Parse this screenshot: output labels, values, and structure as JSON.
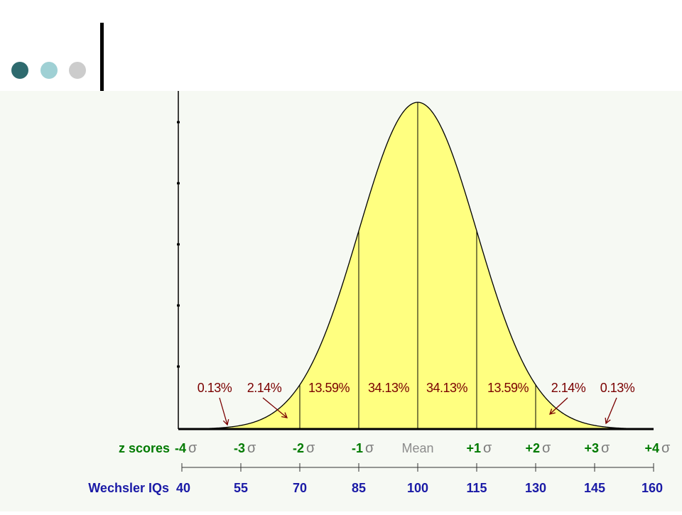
{
  "header": {
    "dots": [
      {
        "name": "dark-teal",
        "color": "#2e6a6e"
      },
      {
        "name": "light-teal",
        "color": "#9fd0d4"
      },
      {
        "name": "gray",
        "color": "#cccccc"
      }
    ]
  },
  "colors": {
    "fill": "#ffff80",
    "curve": "#000000",
    "percent_label": "#7a0000",
    "z_label": "#007a00",
    "iq_label": "#1a1aa6",
    "mean_label": "#8c8c8c",
    "sigma": "#7a7a7a",
    "panel": "#f6f9f3"
  },
  "chart_data": {
    "type": "area",
    "distribution": "normal",
    "mean": 0,
    "sd": 1,
    "xlim": [
      -4,
      4
    ],
    "percentages": [
      {
        "label": "0.13%",
        "from": -4,
        "to": -3
      },
      {
        "label": "2.14%",
        "from": -3,
        "to": -2
      },
      {
        "label": "13.59%",
        "from": -2,
        "to": -1
      },
      {
        "label": "34.13%",
        "from": -1,
        "to": 0
      },
      {
        "label": "34.13%",
        "from": 0,
        "to": 1
      },
      {
        "label": "13.59%",
        "from": 1,
        "to": 2
      },
      {
        "label": "2.14%",
        "from": 2,
        "to": 3
      },
      {
        "label": "0.13%",
        "from": 3,
        "to": 4
      }
    ],
    "z_row_label": "z scores",
    "z_ticks": [
      {
        "z": -4,
        "label": "-4"
      },
      {
        "z": -3,
        "label": "-3"
      },
      {
        "z": -2,
        "label": "-2"
      },
      {
        "z": -1,
        "label": "-1"
      },
      {
        "z": 0,
        "label": "Mean"
      },
      {
        "z": 1,
        "label": "+1"
      },
      {
        "z": 2,
        "label": "+2"
      },
      {
        "z": 3,
        "label": "+3"
      },
      {
        "z": 4,
        "label": "+4"
      }
    ],
    "sigma_symbol": "σ",
    "iq_row_label": "Wechsler IQs",
    "iq_ticks": [
      "40",
      "55",
      "70",
      "85",
      "100",
      "115",
      "130",
      "145",
      "160"
    ]
  }
}
